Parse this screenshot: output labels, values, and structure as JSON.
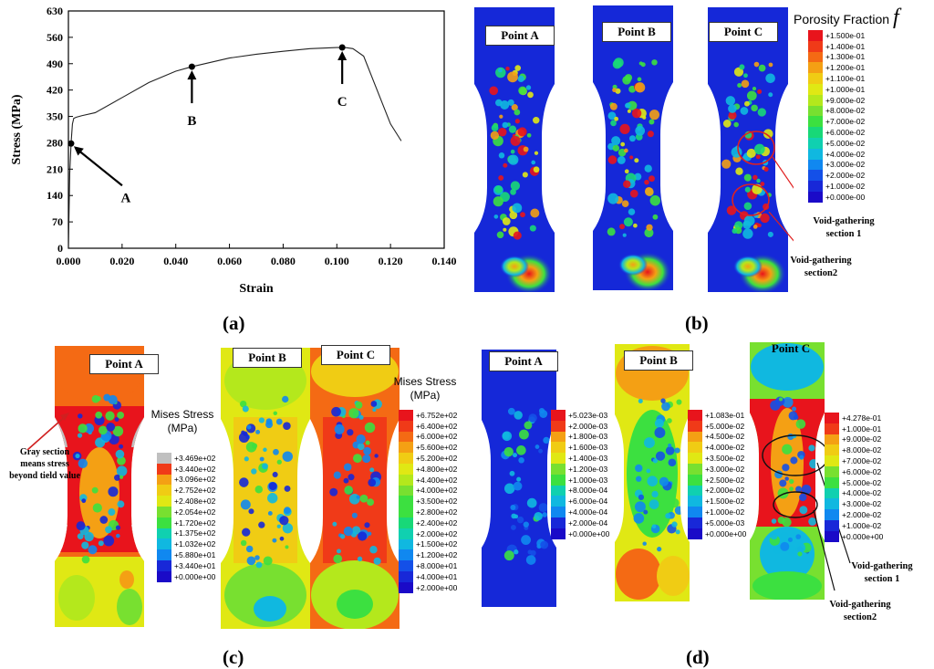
{
  "chart_data": {
    "type": "line",
    "xlabel": "Strain",
    "ylabel": "Stress (MPa)",
    "xlim": [
      0,
      0.14
    ],
    "ylim": [
      0,
      630
    ],
    "x_ticks": [
      "0.000",
      "0.020",
      "0.040",
      "0.060",
      "0.080",
      "0.100",
      "0.120",
      "0.140"
    ],
    "y_ticks": [
      "0",
      "70",
      "140",
      "210",
      "280",
      "350",
      "420",
      "490",
      "560",
      "630"
    ],
    "series": [
      {
        "x": [
          0,
          0.0005,
          0.001,
          0.0015,
          0.002,
          0.003,
          0.005,
          0.01,
          0.02,
          0.03,
          0.04,
          0.046,
          0.06,
          0.07,
          0.08,
          0.09,
          0.1,
          0.103,
          0.106,
          0.11,
          0.115,
          0.12,
          0.124
        ],
        "y": [
          0,
          200,
          280,
          330,
          345,
          348,
          352,
          360,
          400,
          440,
          470,
          482,
          505,
          515,
          523,
          530,
          533,
          533,
          530,
          510,
          420,
          330,
          285
        ]
      }
    ],
    "annotations": [
      {
        "label": "A",
        "x": 0.001,
        "y": 278
      },
      {
        "label": "B",
        "x": 0.046,
        "y": 482
      },
      {
        "label": "C",
        "x": 0.102,
        "y": 533
      }
    ]
  },
  "panel_labels": {
    "a": "(a)",
    "b": "(b)",
    "c": "(c)",
    "d": "(d)"
  },
  "points": {
    "a": "Point A",
    "b": "Point B",
    "c": "Point C"
  },
  "panel_b": {
    "title": "Porosity Fraction",
    "symbol": "f",
    "ticks": [
      "+1.500e-01",
      "+1.400e-01",
      "+1.300e-01",
      "+1.200e-01",
      "+1.100e-01",
      "+1.000e-01",
      "+9.000e-02",
      "+8.000e-02",
      "+7.000e-02",
      "+6.000e-02",
      "+5.000e-02",
      "+4.000e-02",
      "+3.000e-02",
      "+2.000e-02",
      "+1.000e-02",
      "+0.000e-00"
    ],
    "note1": "Void-gathering section 1",
    "note2": "Void-gathering section2"
  },
  "panel_c": {
    "title1": "Mises Stress",
    "unit1": "(MPa)",
    "ticks1": [
      "+3.469e+02",
      "+3.440e+02",
      "+3.096e+02",
      "+2.752e+02",
      "+2.408e+02",
      "+2.054e+02",
      "+1.720e+02",
      "+1.375e+02",
      "+1.032e+02",
      "+5.880e+01",
      "+3.440e+01",
      "+0.000e+00"
    ],
    "gray_note": "Gray section means stress beyond tield value",
    "title2": "Mises Stress",
    "unit2": "(MPa)",
    "ticks2": [
      "+6.752e+02",
      "+6.400e+02",
      "+6.000e+02",
      "+5.600e+02",
      "+5.200e+02",
      "+4.800e+02",
      "+4.400e+02",
      "+4.000e+02",
      "+3.500e+02",
      "+2.800e+02",
      "+2.400e+02",
      "+2.000e+02",
      "+1.500e+02",
      "+1.200e+02",
      "+8.000e+01",
      "+4.000e+01",
      "+2.000e+00"
    ]
  },
  "panel_d": {
    "ticksA": [
      "+5.023e-03",
      "+2.000e-03",
      "+1.800e-03",
      "+1.600e-03",
      "+1.400e-03",
      "+1.200e-03",
      "+1.000e-03",
      "+8.000e-04",
      "+6.000e-04",
      "+4.000e-04",
      "+2.000e-04",
      "+0.000e+00"
    ],
    "ticksB": [
      "+1.083e-01",
      "+5.000e-02",
      "+4.500e-02",
      "+4.000e-02",
      "+3.500e-02",
      "+3.000e-02",
      "+2.500e-02",
      "+2.000e-02",
      "+1.500e-02",
      "+1.000e-02",
      "+5.000e-03",
      "+0.000e+00"
    ],
    "ticksC": [
      "+4.278e-01",
      "+1.000e-01",
      "+9.000e-02",
      "+8.000e-02",
      "+7.000e-02",
      "+6.000e-02",
      "+5.000e-02",
      "+4.000e-02",
      "+3.000e-02",
      "+2.000e-02",
      "+1.000e-02",
      "+0.000e+00"
    ],
    "note1": "Void-gathering section 1",
    "note2": "Void-gathering section2"
  },
  "colors": {
    "fem_blue": "#1528d8",
    "contour_scale": [
      "#e8141c",
      "#f03a18",
      "#f46a14",
      "#f4a014",
      "#f0cc14",
      "#e0e814",
      "#b4e81c",
      "#78e030",
      "#3ce040",
      "#18d878",
      "#10d0b0",
      "#10b8e0",
      "#1088f0",
      "#1450e8",
      "#1828d8",
      "#1a0ac8"
    ]
  }
}
